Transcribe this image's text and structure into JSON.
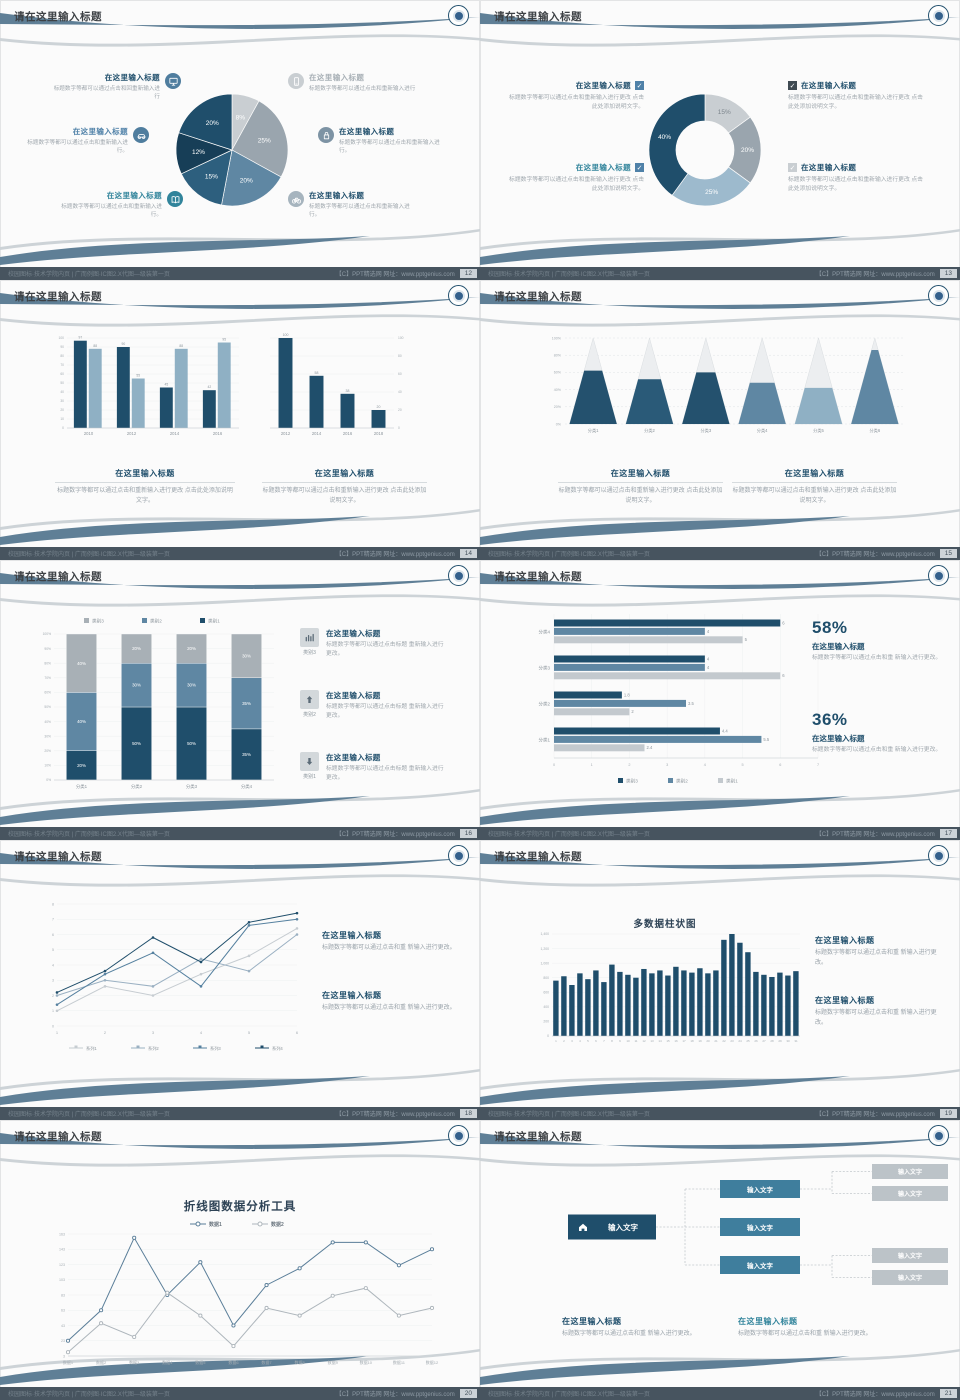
{
  "footer": {
    "left": "校园图标·技术学院内页 | 广而例图·IC图2.X代图—级装第一页",
    "right": "【C】PPT精选网  网址：www.pptgenius.com"
  },
  "slides": [
    {
      "page": "12",
      "title": "请在这里输入标题",
      "items_left": [
        {
          "icon": "monitor",
          "icon_bg": "#4f7d9e",
          "title": "在这里输入标题",
          "title_color": "#1f4e6b",
          "body": "标题数字等都可以通过点击和回重新输入进行"
        },
        {
          "icon": "car",
          "icon_bg": "#4f7d9e",
          "title": "在这里输入标题",
          "title_color": "#4f81a8",
          "body": "标题数字等都可以通过点击和重新输入进行。"
        },
        {
          "icon": "book",
          "icon_bg": "#31849b",
          "title": "在这里输入标题",
          "title_color": "#31849b",
          "body": "标题数字等都可以通过点击和重新输入进行。"
        }
      ],
      "items_right": [
        {
          "icon": "phone",
          "icon_bg": "#c9ced2",
          "title": "在这里输入标题",
          "title_color": "#a8b0b6",
          "body": "标题数字等都可以通过点击和重新输入进行"
        },
        {
          "icon": "lock",
          "icon_bg": "#7d93a4",
          "title": "在这里输入标题",
          "title_color": "#1f4e6b",
          "body": "标题数字等都可以通过点击和重新输入进行。"
        },
        {
          "icon": "bike",
          "icon_bg": "#a6b4be",
          "title": "在这里输入标题",
          "title_color": "#1f4e6b",
          "body": "标题数字等都可以通过点击和重新输入进行。"
        }
      ],
      "chart_data": {
        "type": "pie",
        "labels": [
          "8%",
          "25%",
          "20%",
          "15%",
          "12%",
          "20%"
        ],
        "values": [
          8,
          25,
          20,
          15,
          12,
          20
        ],
        "colors": [
          "#c9ced2",
          "#9aa5ae",
          "#5f87a3",
          "#2d5f7e",
          "#173e57",
          "#1f4e6b"
        ]
      }
    },
    {
      "page": "13",
      "title": "请在这里输入标题",
      "items_left": [
        {
          "title": "在这里输入标题",
          "title_color": "#1f4e6b",
          "check_color": "#4f81a8",
          "body": "标题数字等都可以通过点击和重新输入进行更改 点击此处添加说明文字。"
        },
        {
          "title": "在这里输入标题",
          "title_color": "#31849b",
          "check_color": "#4f81a8",
          "body": "标题数字等都可以通过点击和重新输入进行更改 点击此处添加说明文字。"
        }
      ],
      "items_right": [
        {
          "title": "在这里输入标题",
          "title_color": "#1f4e6b",
          "check_color": "#3f4a52",
          "body": "标题数字等都可以通过点击和重新输入进行更改 点击此处添加说明文字。"
        },
        {
          "title": "在这里输入标题",
          "title_color": "#1f4e6b",
          "check_color": "#c9ced2",
          "body": "标题数字等都可以通过点击和重新输入进行更改 点击此处添加说明文字。"
        }
      ],
      "chart_data": {
        "type": "donut",
        "labels": [
          "15%",
          "20%",
          "25%",
          "40%"
        ],
        "values": [
          15,
          20,
          25,
          40
        ],
        "colors": [
          "#c9ced2",
          "#9aa5ae",
          "#9dbacd",
          "#1f4e6b"
        ],
        "label_colors": [
          "#7d868d",
          "#ffffff",
          "#ffffff",
          "#ffffff"
        ]
      }
    },
    {
      "page": "14",
      "title": "请在这里输入标题",
      "blocks": [
        {
          "title": "在这里输入标题",
          "body": "标题数字等都可以通过点击和重新输入进行更改 点击此处添加说明文字。"
        },
        {
          "title": "在这里输入标题",
          "body": "标题数字等都可以通过点击和重新输入进行更改 点击此处添加说明文字。"
        }
      ],
      "chart_data": {
        "type": "bar",
        "left": {
          "categories": [
            "2010",
            "2012",
            "2014",
            "2016"
          ],
          "ymax": 100,
          "series": [
            {
              "name": "类别1",
              "color": "#1f4e6b",
              "values": [
                97,
                90,
                45,
                42
              ]
            },
            {
              "name": "类别2",
              "color": "#8fb0c4",
              "values": [
                88,
                55,
                88,
                95
              ]
            }
          ]
        },
        "right": {
          "categories": [
            "2012",
            "2014",
            "2016",
            "2018"
          ],
          "ymax": 100,
          "series": [
            {
              "name": "类别1",
              "color": "#1f4e6b",
              "values": [
                100,
                58,
                38,
                20
              ]
            }
          ]
        }
      }
    },
    {
      "page": "15",
      "title": "请在这里输入标题",
      "blocks": [
        {
          "title": "在这里输入标题",
          "body": "标题数字等都可以通过点击和重新输入进行更改 点击此处添加说明文字。"
        },
        {
          "title": "在这里输入标题",
          "body": "标题数字等都可以通过点击和重新输入进行更改 点击此处添加说明文字。"
        }
      ],
      "chart_data": {
        "type": "pyramid",
        "categories": [
          "分类1",
          "分类2",
          "分类3",
          "分类4",
          "分类5",
          "分类6"
        ],
        "fill_percent": [
          62,
          52,
          60,
          48,
          42,
          86
        ],
        "colors": [
          "#24516e",
          "#2a5a78",
          "#24516e",
          "#5f87a3",
          "#8fb0c4",
          "#5f87a3"
        ],
        "ymax": 100
      }
    },
    {
      "page": "16",
      "title": "请在这里输入标题",
      "items": [
        {
          "icon": "chart",
          "label": "类别3",
          "title": "在这里输入标题",
          "body": "标题数字等都可以通过点击标题 重新输入进行更改。"
        },
        {
          "icon": "up",
          "label": "类别2",
          "title": "在这里输入标题",
          "body": "标题数字等都可以通过点击标题 重新输入进行更改。"
        },
        {
          "icon": "down",
          "label": "类别1",
          "title": "在这里输入标题",
          "body": "标题数字等都可以通过点击标题 重新输入进行更改。"
        }
      ],
      "chart_data": {
        "type": "stacked-bar",
        "categories": [
          "分类1",
          "分类2",
          "分类3",
          "分类4"
        ],
        "series": [
          {
            "name": "类别1",
            "color": "#1f4e6b",
            "values": [
              20,
              50,
              50,
              35
            ]
          },
          {
            "name": "类别2",
            "color": "#5f87a3",
            "values": [
              40,
              30,
              30,
              35
            ]
          },
          {
            "name": "类别3",
            "color": "#a8b0b6",
            "values": [
              40,
              20,
              20,
              30
            ]
          }
        ]
      }
    },
    {
      "page": "17",
      "title": "请在这里输入标题",
      "stats": [
        {
          "value": "58%",
          "title": "在这里输入标题",
          "body": "标题数字等都可以通过点击和重 新输入进行更改。"
        },
        {
          "value": "36%",
          "title": "在这里输入标题",
          "body": "标题数字等都可以通过点击和重 新输入进行更改。"
        }
      ],
      "chart_data": {
        "type": "hbar",
        "categories": [
          "分类4",
          "分类3",
          "分类2",
          "分类1"
        ],
        "xmax": 7,
        "series": [
          {
            "name": "类别3",
            "color": "#1f4e6b",
            "values": [
              6,
              4,
              1.8,
              4.4
            ]
          },
          {
            "name": "类别2",
            "color": "#5f87a3",
            "values": [
              4,
              4,
              3.5,
              5.5
            ]
          },
          {
            "name": "类别1",
            "color": "#c3c9ce",
            "values": [
              5,
              6,
              2,
              2.4
            ]
          }
        ]
      }
    },
    {
      "page": "18",
      "title": "请在这里输入标题",
      "blocks": [
        {
          "title": "在这里输入标题",
          "body": "标题数字等都可以通过点击和重 新输入进行更改。"
        },
        {
          "title": "在这里输入标题",
          "body": "标题数字等都可以通过点击和重 新输入进行更改。"
        }
      ],
      "chart_data": {
        "type": "line",
        "x": [
          "1",
          "2",
          "3",
          "4",
          "5",
          "6"
        ],
        "ymax": 8,
        "series": [
          {
            "name": "系列1",
            "color": "#c6ccd1",
            "values": [
              1,
              2.6,
              2,
              3.4,
              4.6,
              6.4
            ]
          },
          {
            "name": "系列2",
            "color": "#9ab0c2",
            "values": [
              2,
              3,
              2.6,
              4.4,
              3.6,
              6
            ]
          },
          {
            "name": "系列3",
            "color": "#55809f",
            "values": [
              1.4,
              3.4,
              4.8,
              2.6,
              6.6,
              7
            ]
          },
          {
            "name": "系列4",
            "color": "#1f4e6b",
            "values": [
              2.2,
              3.6,
              5.8,
              4.2,
              6.8,
              7.4
            ]
          }
        ]
      }
    },
    {
      "page": "19",
      "title": "请在这里输入标题",
      "chart_title": "多数据柱状图",
      "blocks": [
        {
          "title": "在这里输入标题",
          "body": "标题数字等都可以通过点击和重 新输入进行更改。"
        },
        {
          "title": "在这里输入标题",
          "body": "标题数字等都可以通过点击和重 新输入进行更改。"
        }
      ],
      "chart_data": {
        "type": "column",
        "color": "#1f4e6b",
        "yticks": [
          0,
          200,
          400,
          600,
          800,
          1000,
          1200,
          1400
        ],
        "x_labels": [
          "1",
          "2",
          "3",
          "4",
          "5",
          "6",
          "7",
          "8",
          "9",
          "10",
          "11",
          "12",
          "13",
          "14",
          "15",
          "16",
          "17",
          "18",
          "19",
          "20",
          "21",
          "22",
          "23",
          "24",
          "25",
          "26",
          "27",
          "28",
          "29",
          "30",
          "31"
        ],
        "values": [
          760,
          820,
          700,
          860,
          780,
          900,
          740,
          980,
          880,
          840,
          800,
          920,
          860,
          900,
          830,
          950,
          900,
          870,
          930,
          860,
          900,
          1320,
          1400,
          1280,
          1150,
          880,
          840,
          810,
          870,
          830,
          890
        ]
      }
    },
    {
      "page": "20",
      "title": "请在这里输入标题",
      "chart_title": "折线图数据分析工具",
      "chart_data": {
        "type": "line",
        "title": "折线图数据分析工具",
        "categories": [
          "数据1",
          "数据2",
          "数据3",
          "数据4",
          "数据5",
          "数据6",
          "数据7",
          "数据8",
          "数据9",
          "数据10",
          "数据11",
          "数据12"
        ],
        "yticks": [
          3,
          23,
          43,
          63,
          83,
          103,
          123,
          143,
          163
        ],
        "series": [
          {
            "name": "数据1",
            "color": "#5a7e99",
            "values": [
              23,
              63,
              158,
              83,
              126,
              43,
              96,
              118,
              152,
              152,
              122,
              143
            ]
          },
          {
            "name": "数据2",
            "color": "#aeb6bc",
            "values": [
              8,
              46,
              28,
              86,
              56,
              16,
              66,
              56,
              82,
              92,
              56,
              66
            ]
          }
        ]
      }
    },
    {
      "page": "21",
      "title": "请在这里输入标题",
      "diagram": {
        "root": "输入文字",
        "root_color": "#1f4e6b",
        "mid_color": "#3f7e9d",
        "leaf_color": "#bcc3c8",
        "children": [
          {
            "label": "输入文字",
            "leaves": [
              "输入文字",
              "输入文字"
            ]
          },
          {
            "label": "输入文字",
            "leaves": []
          },
          {
            "label": "输入文字",
            "leaves": [
              "输入文字",
              "输入文字"
            ]
          }
        ]
      },
      "blocks": [
        {
          "title": "在这里输入标题",
          "title_color": "#1f4e6b",
          "body": "标题数字等都可以通过点击和重 新输入进行更改。"
        },
        {
          "title": "在这里输入标题",
          "title_color": "#31849b",
          "body": "标题数字等都可以通过点击和重 新输入进行更改。"
        }
      ]
    }
  ]
}
